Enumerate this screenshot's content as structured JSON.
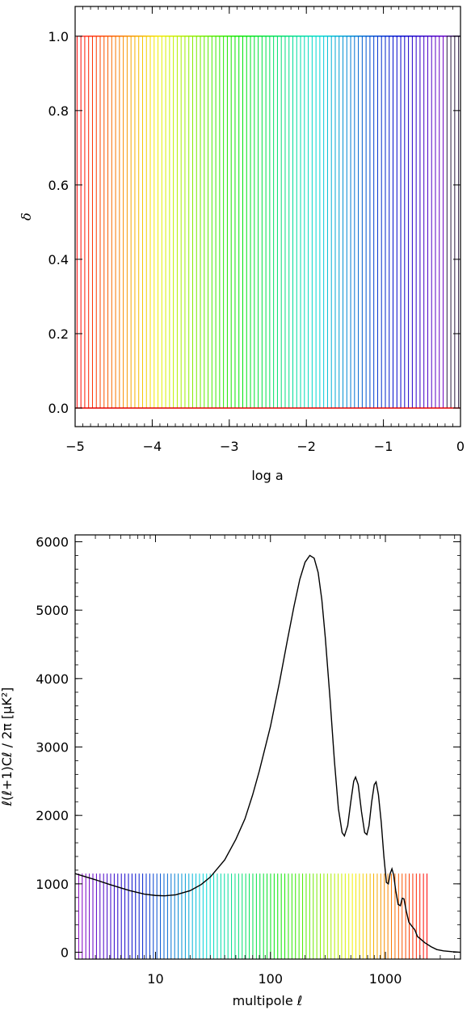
{
  "chart_data": [
    {
      "type": "line",
      "xlabel": "log a",
      "ylabel": "δ",
      "xlim": [
        -5,
        0
      ],
      "ylim": [
        -0.05,
        1.08
      ],
      "xticks": [
        -5,
        -4,
        -3,
        -2,
        -1,
        0
      ],
      "xtick_labels": [
        "−5",
        "−4",
        "−3",
        "−2",
        "−1",
        "0"
      ],
      "yticks": [
        0.0,
        0.2,
        0.4,
        0.6,
        0.8,
        1.0
      ],
      "ytick_labels": [
        "0.0",
        "0.2",
        "0.4",
        "0.6",
        "0.8",
        "1.0"
      ],
      "grid": false,
      "series_description": {
        "count": 100,
        "shape": "step from 0 to 1 at successive log a values",
        "x_start": -5.0,
        "x_end": 0.0,
        "low_value": 0.0,
        "high_value": 1.0,
        "color_order": "red to violet/black as log a increases"
      }
    },
    {
      "type": "line",
      "xlabel": "multipole ℓ",
      "ylabel": "ℓ(ℓ+1)Cℓ / 2π  [μK²]",
      "xscale": "log",
      "xlim": [
        2,
        4500
      ],
      "ylim": [
        -100,
        6100
      ],
      "xticks": [
        10,
        100,
        1000
      ],
      "xtick_labels": [
        "10",
        "100",
        "1000"
      ],
      "yticks": [
        0,
        1000,
        2000,
        3000,
        4000,
        5000,
        6000
      ],
      "ytick_labels": [
        "0",
        "1000",
        "2000",
        "3000",
        "4000",
        "5000",
        "6000"
      ],
      "grid": false,
      "spectrum": {
        "color": "#000000",
        "points": [
          [
            2,
            1150
          ],
          [
            3,
            1060
          ],
          [
            4,
            990
          ],
          [
            5,
            940
          ],
          [
            6,
            900
          ],
          [
            8,
            850
          ],
          [
            10,
            830
          ],
          [
            12,
            825
          ],
          [
            15,
            840
          ],
          [
            20,
            900
          ],
          [
            25,
            990
          ],
          [
            30,
            1100
          ],
          [
            40,
            1350
          ],
          [
            50,
            1650
          ],
          [
            60,
            1950
          ],
          [
            70,
            2300
          ],
          [
            80,
            2650
          ],
          [
            100,
            3300
          ],
          [
            120,
            3950
          ],
          [
            140,
            4550
          ],
          [
            160,
            5050
          ],
          [
            180,
            5450
          ],
          [
            200,
            5700
          ],
          [
            220,
            5800
          ],
          [
            240,
            5760
          ],
          [
            260,
            5550
          ],
          [
            280,
            5150
          ],
          [
            300,
            4600
          ],
          [
            330,
            3700
          ],
          [
            360,
            2800
          ],
          [
            390,
            2100
          ],
          [
            420,
            1750
          ],
          [
            440,
            1700
          ],
          [
            470,
            1850
          ],
          [
            500,
            2200
          ],
          [
            530,
            2500
          ],
          [
            550,
            2560
          ],
          [
            580,
            2450
          ],
          [
            620,
            2050
          ],
          [
            660,
            1750
          ],
          [
            690,
            1720
          ],
          [
            720,
            1850
          ],
          [
            760,
            2200
          ],
          [
            800,
            2450
          ],
          [
            830,
            2490
          ],
          [
            870,
            2300
          ],
          [
            920,
            1900
          ],
          [
            970,
            1400
          ],
          [
            1020,
            1020
          ],
          [
            1060,
            1000
          ],
          [
            1100,
            1150
          ],
          [
            1140,
            1220
          ],
          [
            1180,
            1130
          ],
          [
            1230,
            900
          ],
          [
            1290,
            700
          ],
          [
            1350,
            680
          ],
          [
            1400,
            790
          ],
          [
            1450,
            780
          ],
          [
            1520,
            600
          ],
          [
            1600,
            440
          ],
          [
            1700,
            380
          ],
          [
            1800,
            330
          ],
          [
            1900,
            230
          ],
          [
            2000,
            200
          ],
          [
            2200,
            140
          ],
          [
            2500,
            80
          ],
          [
            2800,
            40
          ],
          [
            3200,
            20
          ],
          [
            3800,
            8
          ],
          [
            4500,
            0
          ]
        ]
      },
      "bars_description": {
        "count": 100,
        "top_value": 1150,
        "l_start": 2,
        "l_end": 2300,
        "color_order": "violet/blue at low ℓ to red at high ℓ"
      }
    }
  ]
}
